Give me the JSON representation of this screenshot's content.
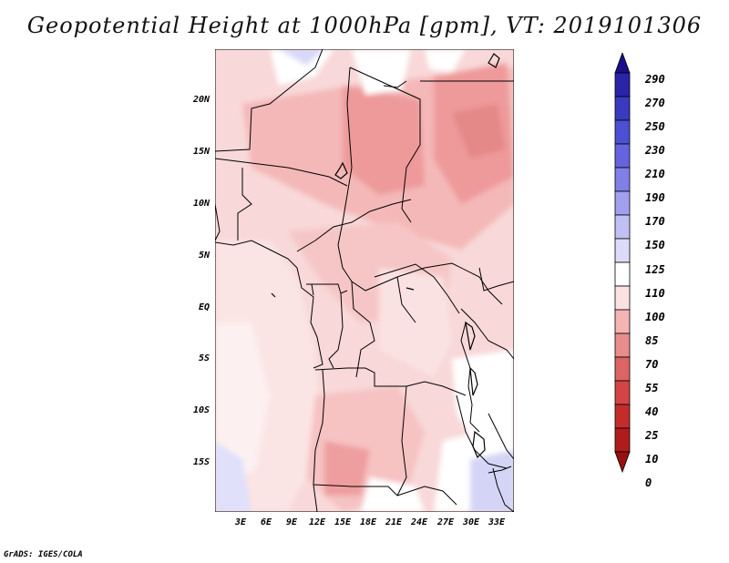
{
  "title": "Geopotential Height at 1000hPa [gpm], VT: 2019101306",
  "credit": "GrADS: IGES/COLA",
  "axes": {
    "lat_labels": [
      "20N",
      "15N",
      "10N",
      "5N",
      "EQ",
      "5S",
      "10S",
      "15S"
    ],
    "lon_labels": [
      "3E",
      "6E",
      "9E",
      "12E",
      "15E",
      "18E",
      "21E",
      "24E",
      "27E",
      "30E",
      "33E"
    ]
  },
  "colorbar": {
    "labels": [
      "290",
      "270",
      "250",
      "230",
      "210",
      "190",
      "170",
      "150",
      "125",
      "110",
      "100",
      "85",
      "70",
      "55",
      "40",
      "25",
      "10",
      "0"
    ],
    "colors": [
      "#1a0e8c",
      "#2a24a8",
      "#3a3ac0",
      "#4c50d2",
      "#6464de",
      "#8080e6",
      "#a0a0ee",
      "#c0c0f4",
      "#dcdcfa",
      "#ffffff",
      "#fbe2e2",
      "#f4b4b4",
      "#e88c8c",
      "#dc6464",
      "#d44444",
      "#c42c2c",
      "#b01c1c",
      "#9a1010"
    ]
  }
}
